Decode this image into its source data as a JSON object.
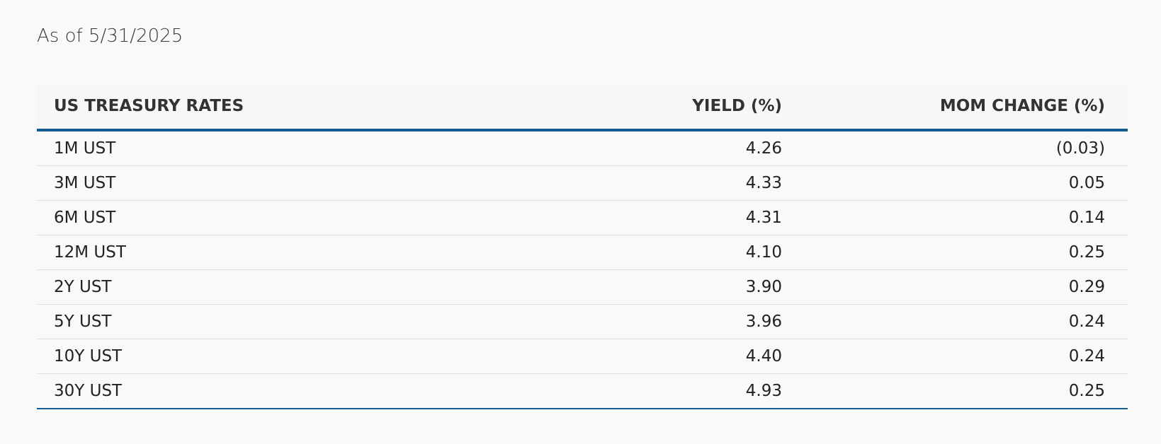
{
  "header": {
    "as_of": "As of 5/31/2025"
  },
  "table": {
    "columns": [
      "US TREASURY RATES",
      "YIELD (%)",
      "MOM CHANGE (%)"
    ],
    "rows": [
      [
        "1M UST",
        "4.26",
        "(0.03)"
      ],
      [
        "3M UST",
        "4.33",
        "0.05"
      ],
      [
        "6M UST",
        "4.31",
        "0.14"
      ],
      [
        "12M UST",
        "4.10",
        "0.25"
      ],
      [
        "2Y UST",
        "3.90",
        "0.29"
      ],
      [
        "5Y UST",
        "3.96",
        "0.24"
      ],
      [
        "10Y UST",
        "4.40",
        "0.24"
      ],
      [
        "30Y UST",
        "4.93",
        "0.25"
      ]
    ]
  }
}
